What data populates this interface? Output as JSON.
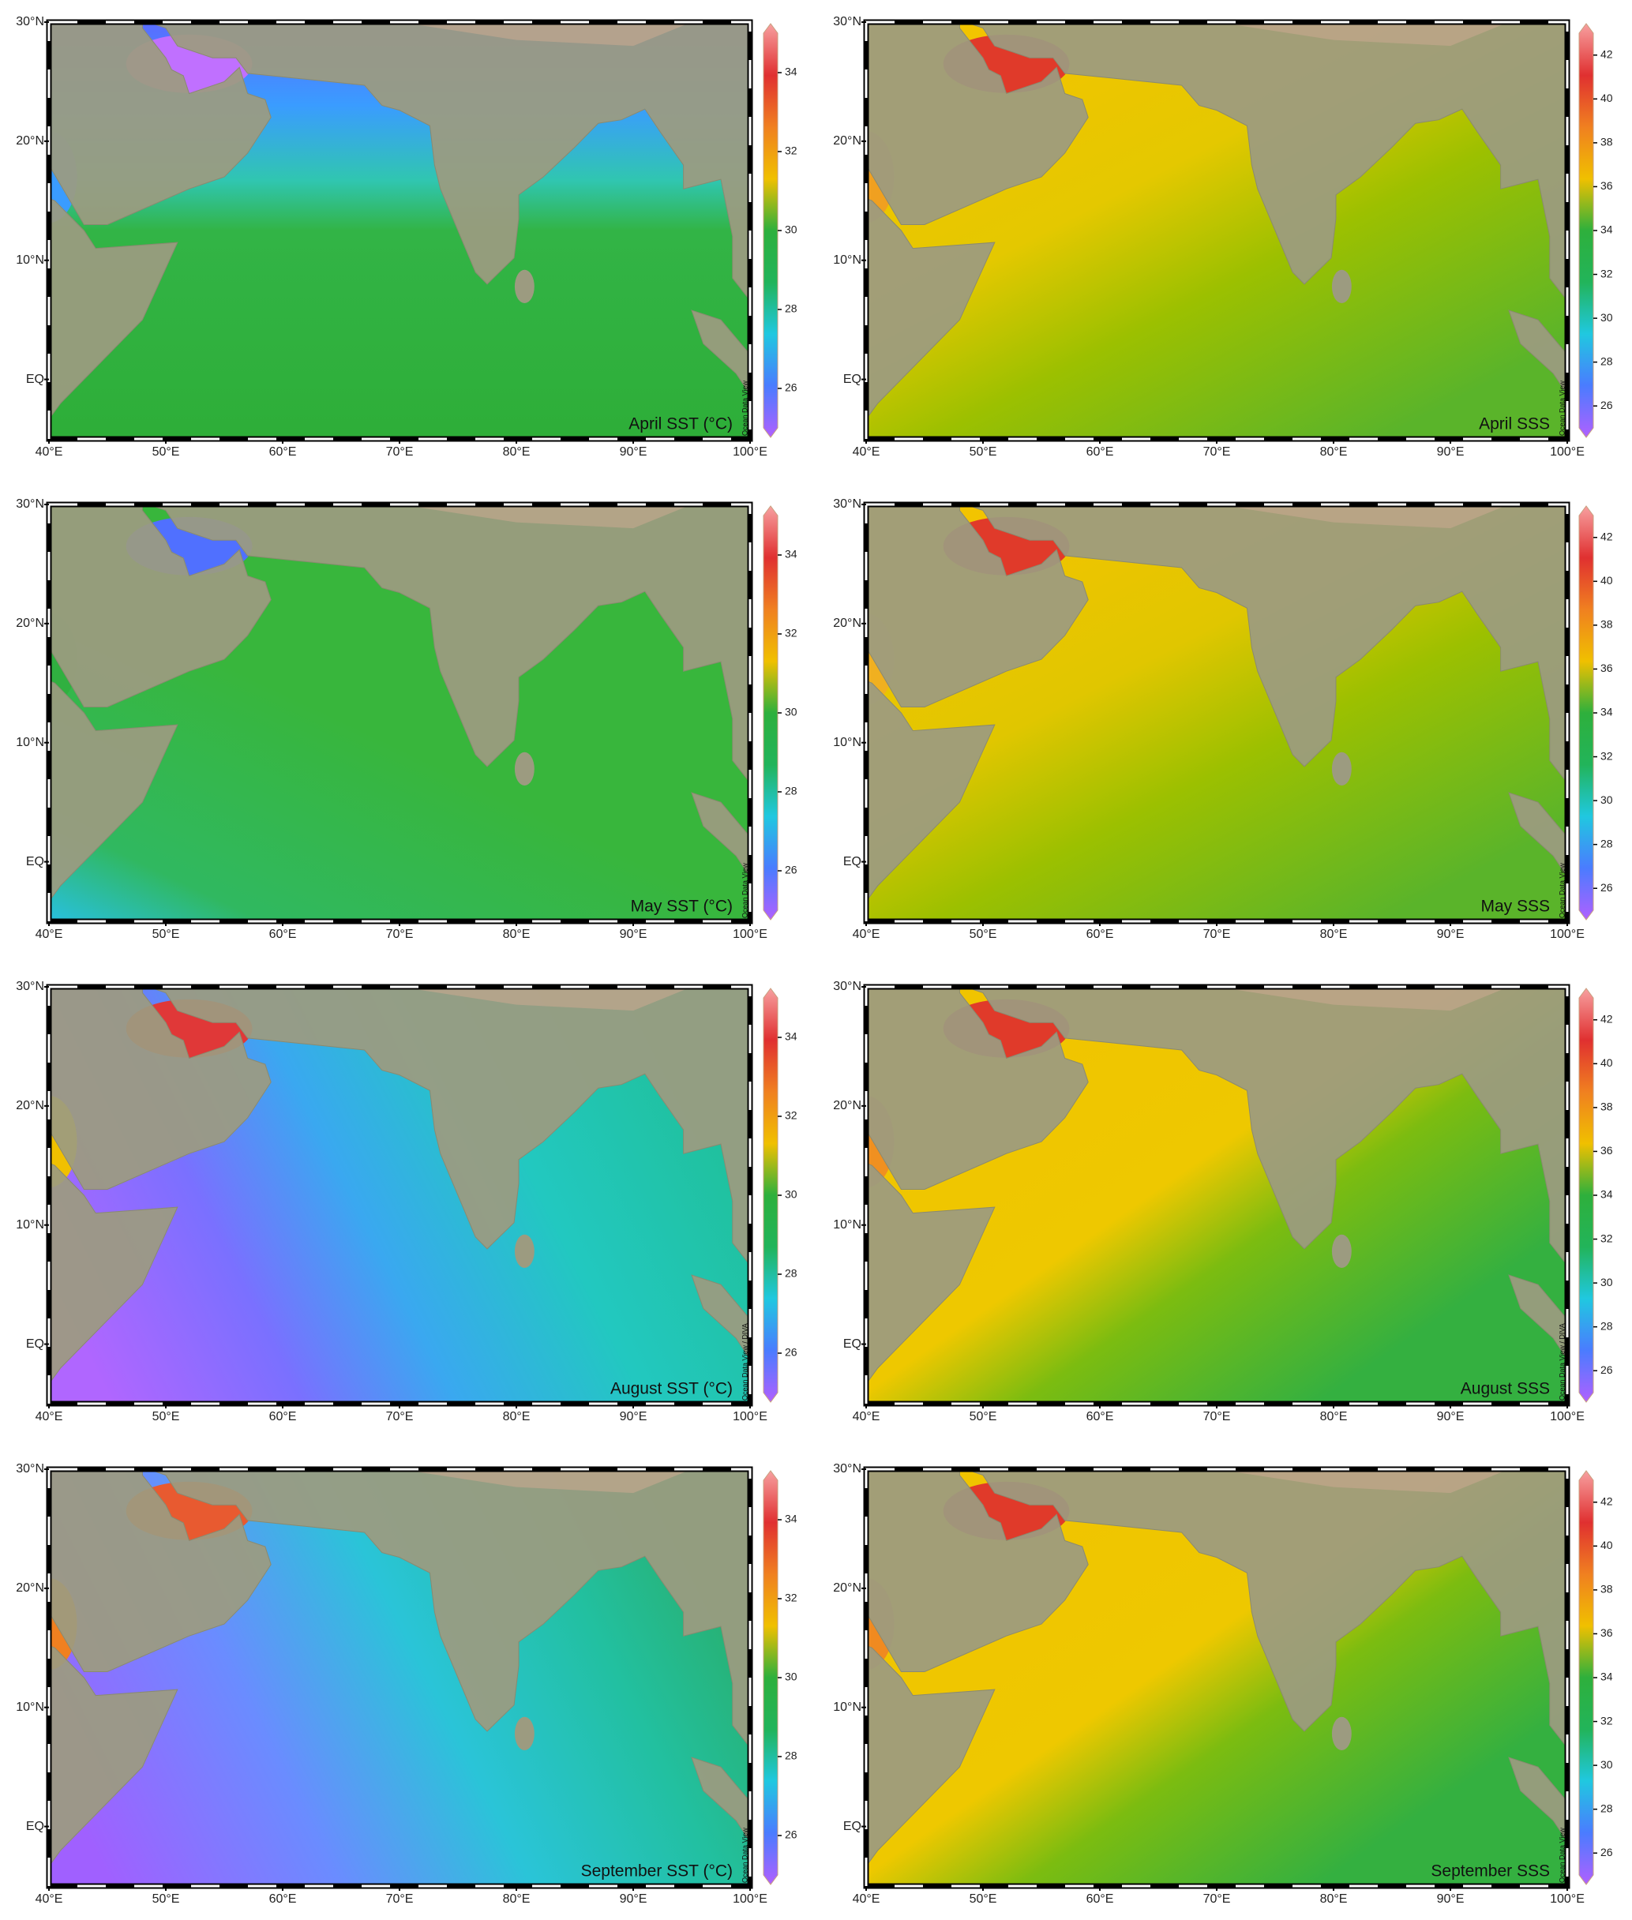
{
  "map": {
    "lonlim": [
      40,
      100
    ],
    "latlim": [
      -5,
      30
    ],
    "lon_ticks": [
      {
        "value": 40,
        "label": "40°E"
      },
      {
        "value": 50,
        "label": "50°E"
      },
      {
        "value": 60,
        "label": "60°E"
      },
      {
        "value": 70,
        "label": "70°E"
      },
      {
        "value": 80,
        "label": "80°E"
      },
      {
        "value": 90,
        "label": "90°E"
      },
      {
        "value": 100,
        "label": "100°E"
      }
    ],
    "lat_ticks": [
      {
        "value": 30,
        "label": "30°N"
      },
      {
        "value": 20,
        "label": "20°N"
      },
      {
        "value": 10,
        "label": "10°N"
      },
      {
        "value": 0,
        "label": "EQ"
      }
    ],
    "columns": [
      {
        "colorbar_lim": [
          25,
          35
        ],
        "colorbar_ticks": [
          26,
          28,
          30,
          32,
          34
        ],
        "panels": [
          {
            "label": "April SST (°C)",
            "credit": "Ocean Data View"
          },
          {
            "label": "May SST (°C)",
            "credit": "Ocean Data View"
          },
          {
            "label": "August SST (°C)",
            "credit": "Ocean Data View / DIVA"
          },
          {
            "label": "September SST (°C)",
            "credit": "Ocean Data View"
          }
        ]
      },
      {
        "colorbar_lim": [
          25,
          43
        ],
        "colorbar_ticks": [
          26,
          28,
          30,
          32,
          34,
          36,
          38,
          40,
          42
        ],
        "panels": [
          {
            "label": "April SSS",
            "credit": "Ocean Data View"
          },
          {
            "label": "May SSS",
            "credit": "Ocean Data View"
          },
          {
            "label": "August SSS",
            "credit": "Ocean Data View / DIVA"
          },
          {
            "label": "September SSS",
            "credit": "Ocean Data View"
          }
        ]
      }
    ]
  }
}
